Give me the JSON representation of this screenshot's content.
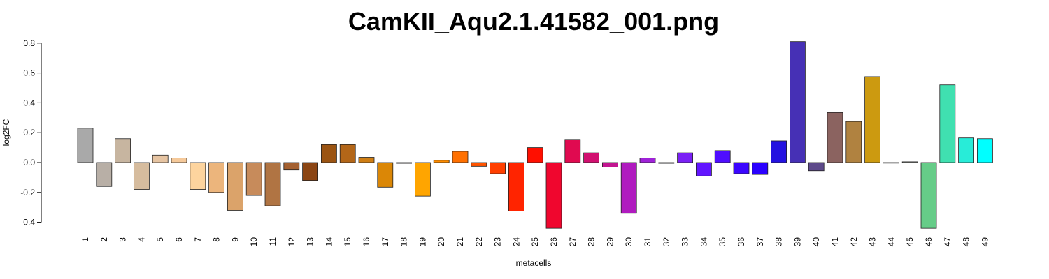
{
  "chart_data": {
    "type": "bar",
    "title": "CamKII_Aqu2.1.41582_001.png",
    "xlabel": "metacells",
    "ylabel": "log2FC",
    "ylim": [
      -0.44,
      0.81
    ],
    "yticks": [
      -0.4,
      -0.2,
      0.0,
      0.2,
      0.4,
      0.6,
      0.8
    ],
    "ytick_labels": [
      "-0.4",
      "-0.2",
      "0.0",
      "0.2",
      "0.4",
      "0.6",
      "0.8"
    ],
    "grid": false,
    "categories": [
      "1",
      "2",
      "3",
      "4",
      "5",
      "6",
      "7",
      "8",
      "9",
      "10",
      "11",
      "12",
      "13",
      "14",
      "15",
      "16",
      "17",
      "18",
      "19",
      "20",
      "21",
      "22",
      "23",
      "24",
      "25",
      "26",
      "27",
      "28",
      "29",
      "30",
      "31",
      "32",
      "33",
      "34",
      "35",
      "36",
      "37",
      "38",
      "39",
      "40",
      "41",
      "42",
      "43",
      "44",
      "45",
      "46",
      "47",
      "48",
      "49"
    ],
    "values": [
      0.23,
      -0.16,
      0.16,
      -0.18,
      0.05,
      0.03,
      -0.18,
      -0.2,
      -0.32,
      -0.22,
      -0.29,
      -0.05,
      -0.12,
      0.12,
      0.12,
      0.035,
      -0.165,
      -0.005,
      -0.225,
      0.015,
      0.075,
      -0.025,
      -0.075,
      -0.325,
      0.1,
      -0.44,
      0.155,
      0.065,
      -0.03,
      -0.34,
      0.03,
      -0.005,
      0.065,
      -0.09,
      0.08,
      -0.075,
      -0.08,
      0.145,
      0.81,
      -0.055,
      0.335,
      0.275,
      0.575,
      -0.003,
      0.005,
      -0.44,
      0.52,
      0.165,
      0.16
    ],
    "colors": [
      "#a9a9a9",
      "#b8afa6",
      "#c7b5a0",
      "#d6bc9e",
      "#e6c4a2",
      "#f5c99a",
      "#fdd49e",
      "#ecb57c",
      "#dba36a",
      "#c78b5b",
      "#b07443",
      "#a46030",
      "#8b4513",
      "#9b5412",
      "#b36618",
      "#cf7e14",
      "#db8706",
      "#d08f02",
      "#ffa500",
      "#ff8c00",
      "#ff7000",
      "#ff5400",
      "#ff3f00",
      "#ff2400",
      "#ff0f00",
      "#f0062e",
      "#e00a50",
      "#d11070",
      "#c21590",
      "#b01bbf",
      "#9f22d8",
      "#8a2ce6",
      "#7a20f5",
      "#6215ff",
      "#4f0dff",
      "#3b06ff",
      "#2a00ff",
      "#2412e0",
      "#4630b5",
      "#5e4a8a",
      "#8b6360",
      "#b08240",
      "#cc9a10",
      "#aaaaaa",
      "#c8ccc0",
      "#66cc88",
      "#40e0b0",
      "#28ecd8",
      "#00ffff"
    ]
  }
}
